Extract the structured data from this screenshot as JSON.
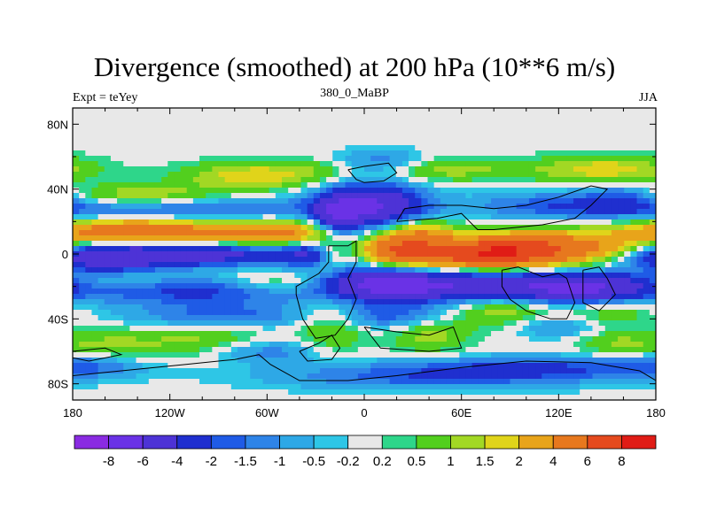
{
  "chart_data": {
    "type": "heatmap",
    "title": "Divergence (smoothed) at 200 hPa (10**6 m/s)",
    "subtitle_left": "Expt = teYey",
    "subtitle_center": "380_0_MaBP",
    "subtitle_right": "JJA",
    "x_ticks": [
      "180",
      "120W",
      "60W",
      "0",
      "60E",
      "120E",
      "180"
    ],
    "x_range": [
      -180,
      180
    ],
    "y_ticks": [
      "80N",
      "40N",
      "0",
      "40S",
      "80S"
    ],
    "y_range": [
      -90,
      90
    ],
    "colorbar_labels": [
      "-8",
      "-6",
      "-4",
      "-2",
      "-1.5",
      "-1",
      "-0.5",
      "-0.2",
      "0.2",
      "0.5",
      "1",
      "1.5",
      "2",
      "4",
      "6",
      "8"
    ],
    "colorbar_colors": [
      "#8a2be2",
      "#6a32e6",
      "#4d33d6",
      "#1f2fcf",
      "#1f5be6",
      "#2e84e8",
      "#2ea8e6",
      "#2ec6e6",
      "#e8e8e8",
      "#2ed68a",
      "#52cf1e",
      "#a2d824",
      "#e0d41a",
      "#e8a41a",
      "#e7781e",
      "#e54a1e",
      "#e01c16"
    ],
    "field_levels": [
      -5,
      -3,
      -2,
      -1.5,
      -1,
      -0.5,
      -0.2,
      0.2,
      0.5,
      1,
      1.5,
      2,
      3,
      5,
      7
    ],
    "blobs": [
      {
        "lon": -120,
        "lat": 14,
        "amp": 3.2,
        "wlon": 60,
        "wlat": 7
      },
      {
        "lon": -150,
        "lat": 15,
        "amp": 1.6,
        "wlon": 30,
        "wlat": 5
      },
      {
        "lon": -50,
        "lat": 12,
        "amp": 2.0,
        "wlon": 22,
        "wlat": 6
      },
      {
        "lon": -140,
        "lat": 35,
        "amp": 2.0,
        "wlon": 40,
        "wlat": 5
      },
      {
        "lon": -70,
        "lat": 48,
        "amp": 1.8,
        "wlon": 30,
        "wlat": 6
      },
      {
        "lon": 30,
        "lat": 52,
        "amp": 1.6,
        "wlon": 45,
        "wlat": 5
      },
      {
        "lon": 150,
        "lat": 52,
        "amp": 1.8,
        "wlon": 30,
        "wlat": 6
      },
      {
        "lon": -50,
        "lat": -18,
        "amp": 1.8,
        "wlon": 28,
        "wlat": 5
      },
      {
        "lon": -150,
        "lat": -18,
        "amp": 1.2,
        "wlon": 25,
        "wlat": 5
      },
      {
        "lon": 65,
        "lat": 0,
        "amp": 5.5,
        "wlon": 40,
        "wlat": 6
      },
      {
        "lon": 105,
        "lat": 4,
        "amp": 3.8,
        "wlon": 30,
        "wlat": 7
      },
      {
        "lon": 20,
        "lat": 3,
        "amp": 2.8,
        "wlon": 14,
        "wlat": 6
      },
      {
        "lon": -20,
        "lat": 0,
        "amp": 2.4,
        "wlon": 8,
        "wlat": 6
      },
      {
        "lon": 35,
        "lat": 13,
        "amp": 2.5,
        "wlon": 15,
        "wlat": 6
      },
      {
        "lon": 155,
        "lat": 2,
        "amp": 1.8,
        "wlon": 20,
        "wlat": 6
      },
      {
        "lon": -20,
        "lat": -45,
        "amp": 1.2,
        "wlon": 15,
        "wlat": 12
      },
      {
        "lon": 40,
        "lat": -48,
        "amp": 1.4,
        "wlon": 18,
        "wlat": 9
      },
      {
        "lon": 85,
        "lat": -35,
        "amp": 1.4,
        "wlon": 20,
        "wlat": 7
      },
      {
        "lon": 150,
        "lat": -32,
        "amp": 1.4,
        "wlon": 22,
        "wlat": 8
      },
      {
        "lon": -100,
        "lat": -52,
        "amp": 1.2,
        "wlon": 30,
        "wlat": 8
      },
      {
        "lon": -160,
        "lat": -58,
        "amp": 1.2,
        "wlon": 22,
        "wlat": 7
      },
      {
        "lon": 155,
        "lat": -55,
        "amp": 1.0,
        "wlon": 18,
        "wlat": 6
      },
      {
        "lon": -120,
        "lat": 0,
        "amp": -4.5,
        "wlon": 60,
        "wlat": 5
      },
      {
        "lon": -160,
        "lat": -5,
        "amp": -2.2,
        "wlon": 25,
        "wlat": 6
      },
      {
        "lon": -30,
        "lat": 0,
        "amp": -2.5,
        "wlon": 15,
        "wlat": 6
      },
      {
        "lon": 5,
        "lat": 30,
        "amp": -4.8,
        "wlon": 22,
        "wlat": 9
      },
      {
        "lon": -15,
        "lat": 23,
        "amp": -3.2,
        "wlon": 10,
        "wlat": 9
      },
      {
        "lon": 75,
        "lat": -20,
        "amp": -4.5,
        "wlon": 55,
        "wlat": 6
      },
      {
        "lon": 10,
        "lat": -18,
        "amp": -4.0,
        "wlon": 25,
        "wlat": 7
      },
      {
        "lon": -110,
        "lat": -22,
        "amp": -2.5,
        "wlon": 60,
        "wlat": 6
      },
      {
        "lon": 140,
        "lat": -22,
        "amp": -3.5,
        "wlon": 25,
        "wlat": 7
      },
      {
        "lon": -120,
        "lat": 27,
        "amp": -2.5,
        "wlon": 70,
        "wlat": 6
      },
      {
        "lon": 10,
        "lat": 55,
        "amp": -2.0,
        "wlon": 20,
        "wlat": 6
      },
      {
        "lon": 120,
        "lat": 30,
        "amp": -1.6,
        "wlon": 40,
        "wlat": 6
      },
      {
        "lon": 20,
        "lat": -38,
        "amp": -2.0,
        "wlon": 25,
        "wlat": 6
      },
      {
        "lon": -90,
        "lat": -38,
        "amp": -1.8,
        "wlon": 40,
        "wlat": 6
      },
      {
        "lon": 40,
        "lat": -75,
        "amp": -1.8,
        "wlon": 70,
        "wlat": 6
      },
      {
        "lon": 110,
        "lat": -70,
        "amp": -1.6,
        "wlon": 50,
        "wlat": 5
      },
      {
        "lon": -170,
        "lat": -68,
        "amp": -1.5,
        "wlon": 25,
        "wlat": 6
      },
      {
        "lon": -60,
        "lat": -60,
        "amp": -1.4,
        "wlon": 25,
        "wlat": 5
      },
      {
        "lon": 120,
        "lat": -45,
        "amp": -1.2,
        "wlon": 20,
        "wlat": 5
      },
      {
        "lon": 160,
        "lat": 35,
        "amp": -1.5,
        "wlon": 18,
        "wlat": 6
      }
    ],
    "continent_outlines": [
      [
        [
          -22,
          5
        ],
        [
          -10,
          5
        ],
        [
          -5,
          8
        ],
        [
          -5,
          -5
        ],
        [
          -10,
          -15
        ],
        [
          -5,
          -28
        ],
        [
          -10,
          -40
        ],
        [
          -18,
          -50
        ],
        [
          -30,
          -52
        ],
        [
          -38,
          -40
        ],
        [
          -42,
          -25
        ],
        [
          -42,
          -20
        ],
        [
          -28,
          -12
        ],
        [
          -22,
          -5
        ],
        [
          -22,
          5
        ]
      ],
      [
        [
          -40,
          -60
        ],
        [
          -28,
          -55
        ],
        [
          -20,
          -50
        ],
        [
          -15,
          -58
        ],
        [
          -20,
          -65
        ],
        [
          -35,
          -66
        ],
        [
          -40,
          -60
        ]
      ],
      [
        [
          -10,
          52
        ],
        [
          0,
          54
        ],
        [
          15,
          56
        ],
        [
          20,
          50
        ],
        [
          12,
          45
        ],
        [
          0,
          44
        ],
        [
          -5,
          46
        ],
        [
          -10,
          52
        ]
      ],
      [
        [
          20,
          20
        ],
        [
          45,
          22
        ],
        [
          60,
          25
        ],
        [
          70,
          15
        ],
        [
          80,
          15
        ],
        [
          110,
          18
        ],
        [
          130,
          22
        ],
        [
          140,
          30
        ],
        [
          150,
          40
        ],
        [
          140,
          42
        ],
        [
          120,
          35
        ],
        [
          100,
          30
        ],
        [
          80,
          28
        ],
        [
          60,
          30
        ],
        [
          40,
          30
        ],
        [
          25,
          28
        ],
        [
          20,
          20
        ]
      ],
      [
        [
          85,
          -10
        ],
        [
          95,
          -8
        ],
        [
          100,
          -10
        ],
        [
          110,
          -14
        ],
        [
          120,
          -12
        ],
        [
          125,
          -15
        ],
        [
          130,
          -30
        ],
        [
          125,
          -40
        ],
        [
          115,
          -40
        ],
        [
          100,
          -35
        ],
        [
          90,
          -28
        ],
        [
          85,
          -20
        ],
        [
          85,
          -10
        ]
      ],
      [
        [
          135,
          -10
        ],
        [
          145,
          -8
        ],
        [
          150,
          -15
        ],
        [
          155,
          -25
        ],
        [
          145,
          -35
        ],
        [
          135,
          -30
        ],
        [
          135,
          -10
        ]
      ],
      [
        [
          0,
          -45
        ],
        [
          20,
          -48
        ],
        [
          40,
          -50
        ],
        [
          55,
          -45
        ],
        [
          60,
          -58
        ],
        [
          40,
          -60
        ],
        [
          10,
          -58
        ],
        [
          0,
          -45
        ]
      ],
      [
        [
          -180,
          -75
        ],
        [
          -150,
          -72
        ],
        [
          -110,
          -68
        ],
        [
          -80,
          -65
        ],
        [
          -65,
          -62
        ],
        [
          -58,
          -68
        ],
        [
          -40,
          -78
        ],
        [
          -10,
          -78
        ],
        [
          20,
          -75
        ],
        [
          60,
          -70
        ],
        [
          100,
          -66
        ],
        [
          140,
          -67
        ],
        [
          170,
          -72
        ],
        [
          180,
          -78
        ],
        [
          180,
          -90
        ],
        [
          -180,
          -90
        ],
        [
          -180,
          -75
        ]
      ],
      [
        [
          -180,
          -60
        ],
        [
          -160,
          -58
        ],
        [
          -150,
          -62
        ],
        [
          -170,
          -66
        ],
        [
          -180,
          -64
        ],
        [
          -180,
          -60
        ]
      ]
    ]
  }
}
